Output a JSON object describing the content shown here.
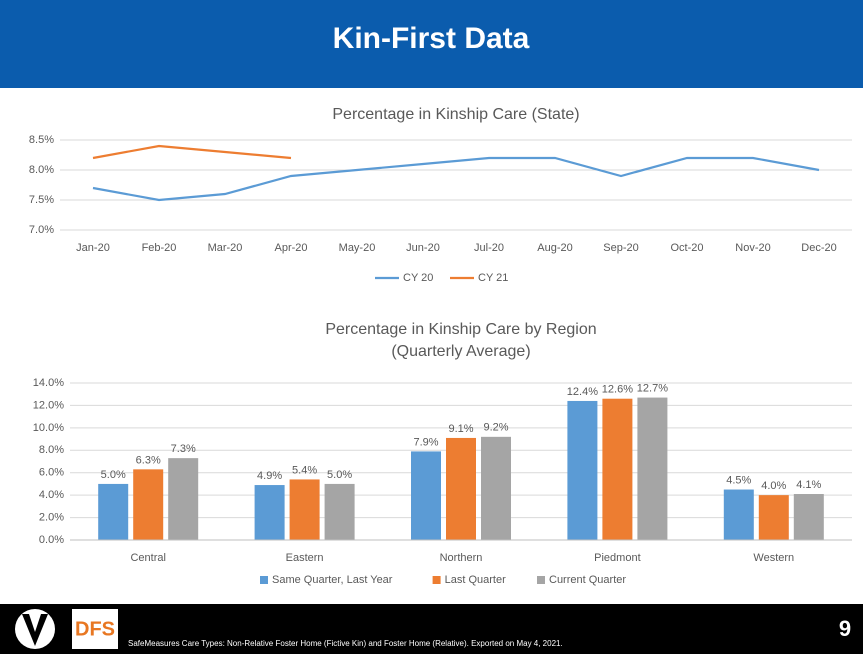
{
  "header": {
    "title": "Kin-First Data"
  },
  "footer": {
    "note": "SafeMeasures Care Types: Non-Relative Foster Home (Fictive Kin) and Foster Home (Relative). Exported on May 4, 2021.",
    "logo_text": "DFS",
    "page_number": "9"
  },
  "chart_data": [
    {
      "type": "line",
      "title": "Percentage in Kinship Care (State)",
      "categories": [
        "Jan-20",
        "Feb-20",
        "Mar-20",
        "Apr-20",
        "May-20",
        "Jun-20",
        "Jul-20",
        "Aug-20",
        "Sep-20",
        "Oct-20",
        "Nov-20",
        "Dec-20"
      ],
      "series": [
        {
          "name": "CY 20",
          "color": "#5b9bd5",
          "values": [
            7.7,
            7.5,
            7.6,
            7.9,
            8.0,
            8.1,
            8.2,
            8.2,
            7.9,
            8.2,
            8.2,
            8.0
          ]
        },
        {
          "name": "CY 21",
          "color": "#ed7d31",
          "values": [
            8.2,
            8.4,
            8.3,
            8.2,
            null,
            null,
            null,
            null,
            null,
            null,
            null,
            null
          ]
        }
      ],
      "ylim": [
        7.0,
        8.5
      ],
      "yticks": [
        {
          "value": 7.0,
          "label": "7.0%"
        },
        {
          "value": 7.5,
          "label": "7.5%"
        },
        {
          "value": 8.0,
          "label": "8.0%"
        },
        {
          "value": 8.5,
          "label": "8.5%"
        }
      ],
      "grid": true,
      "legend": "bottom"
    },
    {
      "type": "bar",
      "title": "Percentage in Kinship Care by Region",
      "subtitle": "(Quarterly Average)",
      "categories": [
        "Central",
        "Eastern",
        "Northern",
        "Piedmont",
        "Western"
      ],
      "series": [
        {
          "name": "Same Quarter, Last Year",
          "color": "#5b9bd5",
          "values": [
            5.0,
            4.9,
            7.9,
            12.4,
            4.5
          ],
          "value_labels": [
            "5.0%",
            "4.9%",
            "7.9%",
            "12.4%",
            "4.5%"
          ]
        },
        {
          "name": "Last Quarter",
          "color": "#ed7d31",
          "values": [
            6.3,
            5.4,
            9.1,
            12.6,
            4.0
          ],
          "value_labels": [
            "6.3%",
            "5.4%",
            "9.1%",
            "12.6%",
            "4.0%"
          ]
        },
        {
          "name": "Current Quarter",
          "color": "#a5a5a5",
          "values": [
            7.3,
            5.0,
            9.2,
            12.7,
            4.1
          ],
          "value_labels": [
            "7.3%",
            "5.0%",
            "9.2%",
            "12.7%",
            "4.1%"
          ]
        }
      ],
      "ylim": [
        0,
        14
      ],
      "yticks": [
        {
          "value": 0,
          "label": "0.0%"
        },
        {
          "value": 2,
          "label": "2.0%"
        },
        {
          "value": 4,
          "label": "4.0%"
        },
        {
          "value": 6,
          "label": "6.0%"
        },
        {
          "value": 8,
          "label": "8.0%"
        },
        {
          "value": 10,
          "label": "10.0%"
        },
        {
          "value": 12,
          "label": "12.0%"
        },
        {
          "value": 14,
          "label": "14.0%"
        }
      ],
      "grid": true,
      "legend": "bottom"
    }
  ]
}
